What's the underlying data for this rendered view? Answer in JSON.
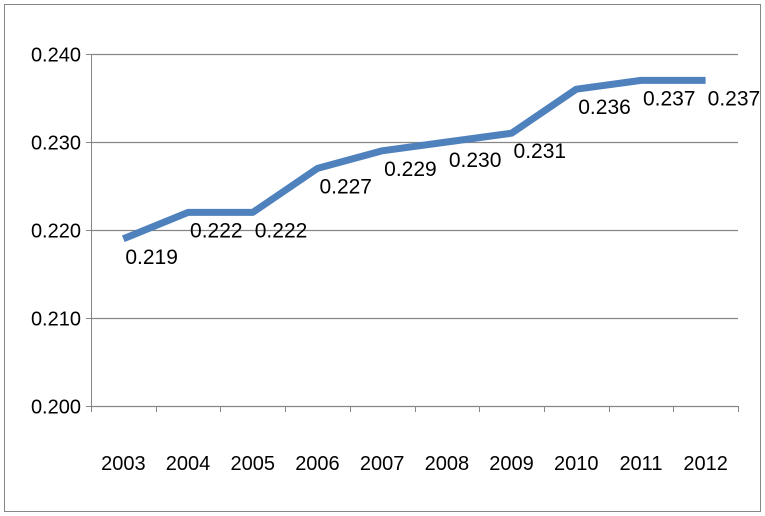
{
  "chart_data": {
    "type": "line",
    "title": "",
    "xlabel": "",
    "ylabel": "",
    "categories": [
      "2003",
      "2004",
      "2005",
      "2006",
      "2007",
      "2008",
      "2009",
      "2010",
      "2011",
      "2012"
    ],
    "y_tick_labels": [
      "0.200",
      "0.210",
      "0.220",
      "0.230",
      "0.240"
    ],
    "ylim": [
      0.2,
      0.24
    ],
    "grid": true,
    "legend": "none",
    "series": [
      {
        "values": [
          0.219,
          0.222,
          0.222,
          0.227,
          0.229,
          0.23,
          0.231,
          0.236,
          0.237,
          0.237
        ],
        "data_labels": [
          "0.219",
          "0.222",
          "0.222",
          "0.227",
          "0.229",
          "0.230",
          "0.231",
          "0.236",
          "0.237",
          "0.237"
        ],
        "color": "#4f81bd"
      }
    ],
    "colors": {
      "gridline": "#868686",
      "axis": "#868686",
      "frame": "#868686",
      "text": "#000000"
    }
  }
}
